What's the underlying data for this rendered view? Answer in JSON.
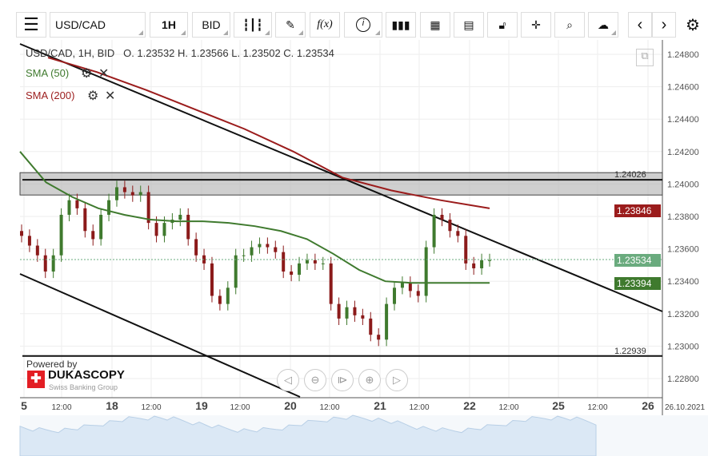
{
  "toolbar": {
    "menu_icon": "hamburger-icon",
    "symbol": "USD/CAD",
    "timeframe": "1H",
    "price_type": "BID",
    "func": "f(x)",
    "info": "i"
  },
  "legend": {
    "ohlc": "USD/CAD, 1H, BID   O. 1.23532 H. 1.23566 L. 1.23502 C. 1.23534",
    "sma50": "SMA (50)",
    "sma200": "SMA (200)"
  },
  "branding": {
    "powered": "Powered by",
    "logo": "DUKASCOPY",
    "tagline": "Swiss Banking Group"
  },
  "colors": {
    "sma50": "#3f7a2e",
    "sma200": "#9b1c1c",
    "up": "#3f7a2e",
    "down": "#8b1a1a"
  },
  "chart_data": {
    "type": "candlestick",
    "title": "USD/CAD, 1H, BID",
    "ohlc_last": {
      "open": 1.23532,
      "high": 1.23566,
      "low": 1.23502,
      "close": 1.23534
    },
    "ylim": [
      1.2274,
      1.2487
    ],
    "yticks": [
      "1.24800",
      "1.24600",
      "1.24400",
      "1.24200",
      "1.24000",
      "1.23800",
      "1.23600",
      "1.23400",
      "1.23200",
      "1.23000",
      "1.22800"
    ],
    "xticks": [
      "5",
      "12:00",
      "18",
      "12:00",
      "19",
      "12:00",
      "20",
      "12:00",
      "21",
      "12:00",
      "22",
      "12:00",
      "25",
      "12:00",
      "26"
    ],
    "last_date": "26.10.2021",
    "closes": [
      1.2368,
      1.2362,
      1.2356,
      1.2346,
      1.2356,
      1.2381,
      1.239,
      1.2385,
      1.2371,
      1.2366,
      1.2381,
      1.239,
      1.2398,
      1.2395,
      1.2393,
      1.2395,
      1.2376,
      1.2368,
      1.2376,
      1.2378,
      1.2381,
      1.2366,
      1.2356,
      1.2351,
      1.2331,
      1.2326,
      1.2336,
      1.2356,
      1.2356,
      1.2361,
      1.2363,
      1.2361,
      1.2358,
      1.2346,
      1.2344,
      1.2351,
      1.2353,
      1.2351,
      1.2351,
      1.2326,
      1.2317,
      1.2324,
      1.2319,
      1.2317,
      1.2307,
      1.2304,
      1.2326,
      1.2336,
      1.2339,
      1.2334,
      1.2331,
      1.2361,
      1.2381,
      1.2378,
      1.2371,
      1.2368,
      1.2351,
      1.2348,
      1.2353,
      1.2353
    ],
    "sma50": [
      1.242,
      1.2401,
      1.2392,
      1.2385,
      1.2381,
      1.2378,
      1.2377,
      1.2377,
      1.2376,
      1.2374,
      1.2371,
      1.2366,
      1.2357,
      1.2347,
      1.234,
      1.2339,
      1.2339,
      1.2339,
      1.2339
    ],
    "sma200": [
      1.2478,
      1.2469,
      1.2458,
      1.2446,
      1.2434,
      1.242,
      1.2404,
      1.2396,
      1.239,
      1.2385
    ],
    "levels": [
      {
        "label": "1.24026",
        "value": 1.24026
      },
      {
        "label": "1.22939",
        "value": 1.22939
      }
    ],
    "price_labels": [
      {
        "label": "1.23846",
        "color": "#9b1c1c"
      },
      {
        "label": "1.23534",
        "color": "#6aab7e"
      },
      {
        "label": "1.23394",
        "color": "#3f7a2e"
      }
    ]
  }
}
